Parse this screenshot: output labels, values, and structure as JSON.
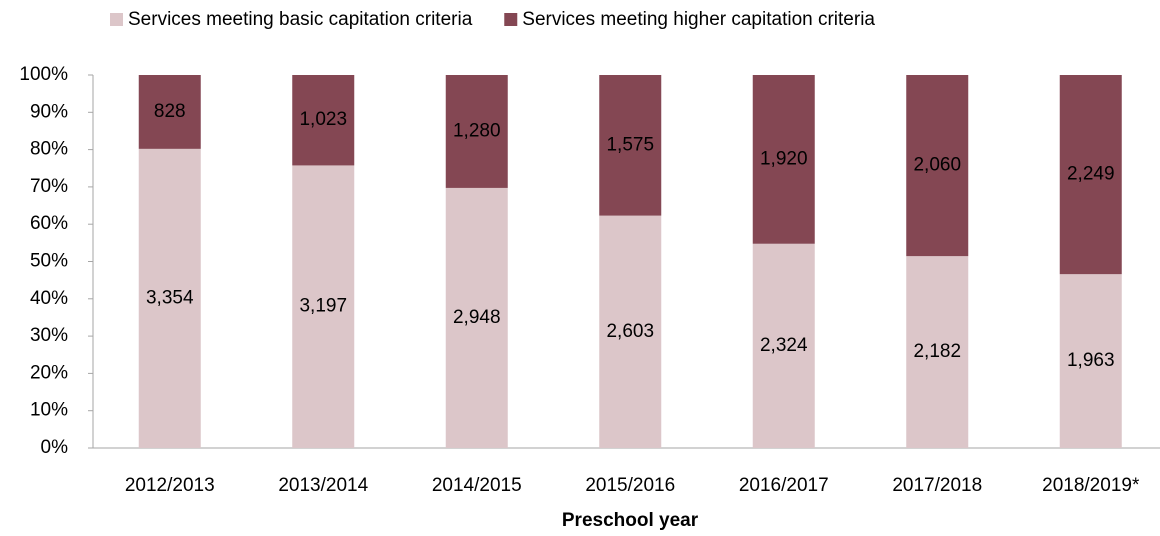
{
  "chart_data": {
    "type": "bar",
    "stacking": "percent",
    "x_label": "Preschool year",
    "categories": [
      "2012/2013",
      "2013/2014",
      "2014/2015",
      "2015/2016",
      "2016/2017",
      "2017/2018",
      "2018/2019*"
    ],
    "series": [
      {
        "name": "Services meeting basic capitation criteria",
        "color": "#dcc6c9",
        "values": [
          3354,
          3197,
          2948,
          2603,
          2324,
          2182,
          1963
        ],
        "value_labels": [
          "3,354",
          "3,197",
          "2,948",
          "2,603",
          "2,324",
          "2,182",
          "1,963"
        ]
      },
      {
        "name": "Services meeting higher capitation criteria",
        "color": "#844753",
        "values": [
          828,
          1023,
          1280,
          1575,
          1920,
          2060,
          2249
        ],
        "value_labels": [
          "828",
          "1,023",
          "1,280",
          "1,575",
          "1,920",
          "2,060",
          "2,249"
        ]
      }
    ],
    "ylim": [
      0,
      100
    ],
    "yticks": [
      {
        "value": 0,
        "label": "0%"
      },
      {
        "value": 10,
        "label": "10%"
      },
      {
        "value": 20,
        "label": "20%"
      },
      {
        "value": 30,
        "label": "30%"
      },
      {
        "value": 40,
        "label": "40%"
      },
      {
        "value": 50,
        "label": "50%"
      },
      {
        "value": 60,
        "label": "60%"
      },
      {
        "value": 70,
        "label": "70%"
      },
      {
        "value": 80,
        "label": "80%"
      },
      {
        "value": 90,
        "label": "90%"
      },
      {
        "value": 100,
        "label": "100%"
      }
    ],
    "legend": "top",
    "grid": false
  }
}
